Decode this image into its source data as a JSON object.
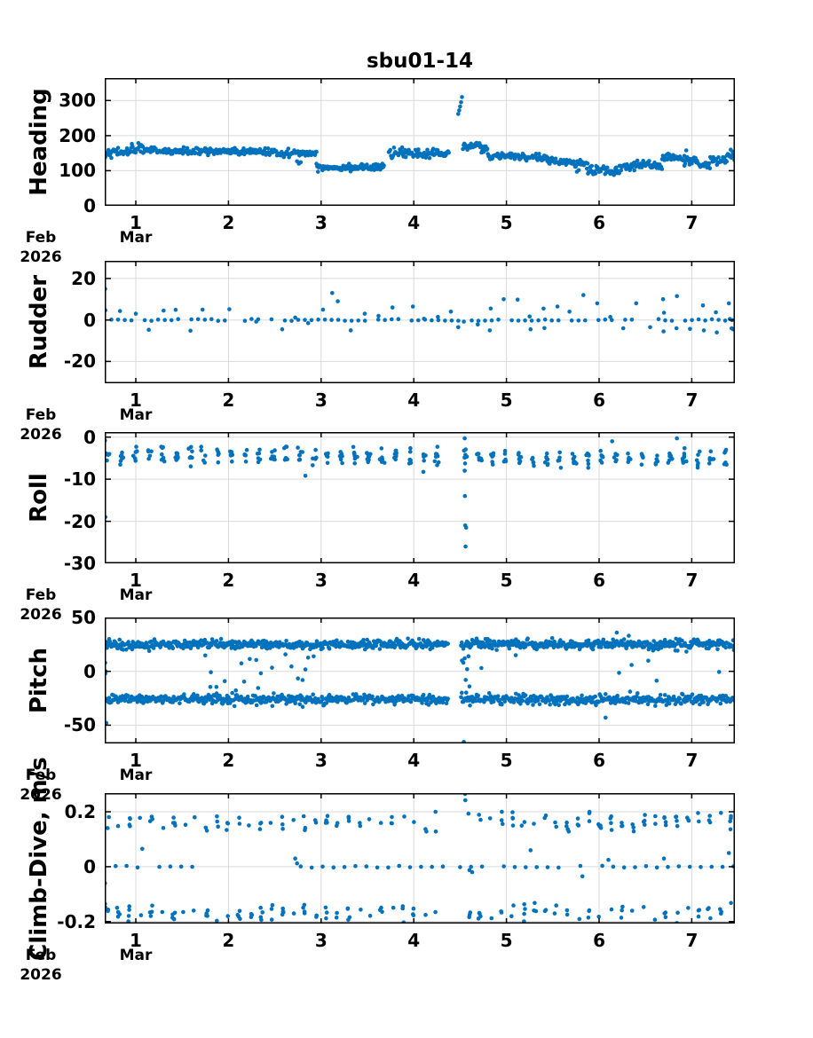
{
  "title": "sbu01-14",
  "chart_data": {
    "type": "scatter",
    "title": "sbu01-14",
    "marker_color": "#0072BD",
    "grid_color": "#dadada",
    "axis_color": "#000000",
    "seed": 42,
    "x_axis": {
      "xlim": [
        0.665,
        7.465
      ],
      "ticks": [
        1,
        2,
        3,
        4,
        5,
        6,
        7
      ],
      "tick_labels": [
        "1",
        "2",
        "3",
        "4",
        "5",
        "6",
        "7"
      ],
      "month_label": "Mar",
      "month_label_at_tick": 1,
      "edge_month": "Feb",
      "edge_year": "2026",
      "grid": true
    },
    "charts": [
      {
        "id": "heading",
        "ylabel": "Heading",
        "ylim": [
          0,
          364
        ],
        "yticks": [
          0,
          100,
          200,
          300
        ],
        "ytick_labels": [
          "0",
          "100",
          "200",
          "300"
        ],
        "spec": {
          "step": 0.008,
          "segments": [
            [
              0.665,
              0.95,
              153,
              5
            ],
            [
              0.95,
              1.02,
              162,
              7
            ],
            [
              1.02,
              1.08,
              170,
              7
            ],
            [
              1.08,
              1.3,
              158,
              5
            ],
            [
              1.3,
              1.9,
              155,
              5
            ],
            [
              1.9,
              2.55,
              154,
              5
            ],
            [
              2.55,
              2.95,
              150,
              5
            ],
            [
              2.95,
              3.68,
              110,
              5
            ],
            [
              3.73,
              4.38,
              149,
              6
            ],
            [
              4.53,
              4.63,
              168,
              6
            ],
            [
              4.63,
              4.73,
              173,
              5
            ],
            [
              4.73,
              4.8,
              160,
              6
            ],
            [
              4.8,
              5.2,
              141,
              5
            ],
            [
              5.2,
              5.45,
              137,
              5
            ],
            [
              5.45,
              5.7,
              127,
              5
            ],
            [
              5.7,
              5.88,
              119,
              6
            ],
            [
              5.88,
              6.22,
              98,
              7
            ],
            [
              6.22,
              6.38,
              110,
              7
            ],
            [
              6.38,
              6.55,
              118,
              6
            ],
            [
              6.55,
              6.68,
              112,
              6
            ],
            [
              6.68,
              6.92,
              135,
              5
            ],
            [
              6.92,
              7.06,
              127,
              6
            ],
            [
              7.06,
              7.2,
              116,
              6
            ],
            [
              7.2,
              7.38,
              130,
              6
            ],
            [
              7.38,
              7.465,
              144,
              6
            ]
          ],
          "points": [
            [
              0.67,
              138
            ],
            [
              2.74,
              127
            ],
            [
              2.76,
              120
            ],
            [
              2.78,
              124
            ],
            [
              4.48,
              262
            ],
            [
              4.49,
              272
            ],
            [
              4.5,
              283
            ],
            [
              4.51,
              295
            ],
            [
              4.52,
              310
            ],
            [
              5.76,
              97
            ],
            [
              6.94,
              158
            ],
            [
              7.42,
              160
            ],
            [
              7.44,
              154
            ]
          ]
        }
      },
      {
        "id": "rudder",
        "ylabel": "Rudder",
        "ylim": [
          -30.5,
          28.5
        ],
        "yticks": [
          -20,
          0,
          20
        ],
        "ytick_labels": [
          "-20",
          "0",
          "20"
        ],
        "spec": {
          "zero_lines": [
            [
              0.665,
              7.465,
              0.072,
              0,
              0.45,
              0.85
            ]
          ],
          "points": [
            [
              0.67,
              15
            ],
            [
              0.672,
              4.7
            ],
            [
              0.83,
              4.3
            ],
            [
              1.0,
              3
            ],
            [
              1.14,
              -4.7
            ],
            [
              1.3,
              4.5
            ],
            [
              1.43,
              4.9
            ],
            [
              1.59,
              -5.2
            ],
            [
              1.72,
              5
            ],
            [
              2.01,
              5.2
            ],
            [
              2.3,
              -0.8
            ],
            [
              2.58,
              -4.5
            ],
            [
              2.72,
              1.2
            ],
            [
              2.86,
              -1.5
            ],
            [
              3.02,
              5
            ],
            [
              3.12,
              13
            ],
            [
              3.18,
              9
            ],
            [
              3.32,
              -5
            ],
            [
              3.47,
              3
            ],
            [
              3.62,
              2
            ],
            [
              3.77,
              6
            ],
            [
              3.99,
              6.5
            ],
            [
              4.11,
              0.6
            ],
            [
              4.26,
              1.5
            ],
            [
              4.4,
              4
            ],
            [
              4.48,
              -3.5
            ],
            [
              4.54,
              -0.8
            ],
            [
              4.69,
              -2.2
            ],
            [
              4.82,
              -5
            ],
            [
              4.83,
              5.5
            ],
            [
              4.97,
              10
            ],
            [
              5.12,
              9.8
            ],
            [
              5.25,
              1.7
            ],
            [
              5.26,
              -4.5
            ],
            [
              5.4,
              5.5
            ],
            [
              5.41,
              -3.9
            ],
            [
              5.55,
              6.5
            ],
            [
              5.68,
              4
            ],
            [
              5.83,
              12
            ],
            [
              5.98,
              8
            ],
            [
              6.12,
              1.5
            ],
            [
              6.26,
              -4
            ],
            [
              6.4,
              8
            ],
            [
              6.55,
              -3.5
            ],
            [
              6.69,
              10
            ],
            [
              6.7,
              3.5
            ],
            [
              6.695,
              -5.5
            ],
            [
              6.84,
              11.5
            ],
            [
              6.835,
              -4
            ],
            [
              6.98,
              -4.3
            ],
            [
              7.12,
              7
            ],
            [
              7.13,
              -5
            ],
            [
              7.26,
              3.7
            ],
            [
              7.27,
              -6
            ],
            [
              7.4,
              8
            ],
            [
              7.41,
              0.5
            ],
            [
              7.43,
              -4
            ],
            [
              7.445,
              -4.5
            ]
          ]
        }
      },
      {
        "id": "roll",
        "ylabel": "Roll",
        "ylim": [
          -30,
          1.2
        ],
        "yticks": [
          0,
          -10,
          -20,
          -30
        ],
        "ytick_labels": [
          "0",
          "-10",
          "-20",
          "-30"
        ],
        "spec": {
          "clusters": [
            {
              "x0": 0.7,
              "x1": 7.44,
              "spacing": 0.148,
              "nmin": 5,
              "nmax": 8,
              "mean_start": -4.3,
              "mean_end": -5.3,
              "sd": 1.1,
              "clip": [
                -8.3,
                -2.3
              ],
              "xsd": 0.012,
              "skip": [
                4.38,
                4.5
              ]
            }
          ],
          "points": [
            [
              0.668,
              -0.8
            ],
            [
              0.668,
              -4.2
            ],
            [
              0.672,
              -19
            ],
            [
              2.83,
              -9.2
            ],
            [
              4.55,
              -0.3
            ],
            [
              4.552,
              -14
            ],
            [
              4.555,
              -21
            ],
            [
              4.565,
              -21.5
            ],
            [
              4.558,
              -26
            ],
            [
              4.55,
              -8.0
            ],
            [
              6.14,
              -1.0
            ],
            [
              6.84,
              -0.3
            ]
          ]
        }
      },
      {
        "id": "pitch",
        "ylabel": "Pitch",
        "ylim": [
          -67,
          50
        ],
        "yticks": [
          -50,
          0,
          50
        ],
        "ytick_labels": [
          "-50",
          "0",
          "50"
        ],
        "spec": {
          "step": 0.008,
          "segments": [
            [
              0.665,
              4.37,
              25,
              2.2,
              18,
              32
            ],
            [
              4.51,
              7.465,
              25,
              2.2,
              18,
              32
            ],
            [
              0.665,
              4.37,
              -26,
              2.2,
              -33,
              -18
            ],
            [
              4.51,
              7.465,
              -26,
              2.2,
              -33,
              -18
            ]
          ],
          "uniform_scatter": [
            [
              0.68,
              7.4,
              0.045,
              0.1,
              -19,
              16
            ],
            [
              1.75,
              3.05,
              0.03,
              0.2,
              -18,
              15
            ]
          ],
          "points": [
            [
              0.67,
              8
            ],
            [
              0.672,
              -2
            ],
            [
              0.675,
              0
            ],
            [
              0.682,
              -48
            ],
            [
              4.54,
              -65.5
            ],
            [
              6.07,
              -43
            ],
            [
              6.19,
              36
            ],
            [
              6.32,
              33
            ],
            [
              4.52,
              10
            ],
            [
              4.535,
              8
            ],
            [
              4.55,
              12
            ],
            [
              4.56,
              -8
            ],
            [
              4.575,
              2
            ],
            [
              4.59,
              14
            ],
            [
              4.6,
              -14
            ],
            [
              5.1,
              15
            ]
          ]
        }
      },
      {
        "id": "climb-dive",
        "ylabel": "Climb-Dive, m/s",
        "ylim": [
          -0.207,
          0.268
        ],
        "yticks": [
          -0.2,
          0,
          0.2
        ],
        "ytick_labels": [
          "-0.2",
          "0",
          "0.2"
        ],
        "spec": {
          "clusters": [
            {
              "x0": 0.7,
              "x1": 7.45,
              "spacing": 0.118,
              "nmin": 1,
              "nmax": 4,
              "mean_start": 0.162,
              "mean_end": 0.165,
              "sd": 0.016,
              "clip": [
                0.128,
                0.2
              ],
              "xsd": 0.008,
              "skip": [
                4.3,
                4.55
              ]
            },
            {
              "x0": 0.7,
              "x1": 7.45,
              "spacing": 0.118,
              "nmin": 1,
              "nmax": 4,
              "mean_start": -0.168,
              "mean_end": -0.168,
              "sd": 0.016,
              "clip": [
                -0.205,
                -0.132
              ],
              "xsd": 0.008,
              "skip": [
                4.33,
                4.5
              ]
            }
          ],
          "zero_lines": [
            [
              0.665,
              1.68,
              0.118,
              0,
              0.0035,
              0.9
            ],
            [
              2.78,
              4.38,
              0.118,
              0,
              0.0035,
              0.9
            ],
            [
              4.5,
              7.46,
              0.118,
              0,
              0.0035,
              0.9
            ]
          ],
          "points": [
            [
              0.668,
              -0.06
            ],
            [
              0.668,
              -0.135
            ],
            [
              0.671,
              -0.148
            ],
            [
              1.07,
              0.065
            ],
            [
              2.72,
              0.03
            ],
            [
              2.74,
              0.012
            ],
            [
              4.553,
              0.265
            ],
            [
              4.556,
              0.242
            ],
            [
              4.6,
              -0.012
            ],
            [
              4.63,
              -0.02
            ],
            [
              5.26,
              0.06
            ],
            [
              5.82,
              -0.035
            ],
            [
              6.1,
              0.025
            ],
            [
              6.7,
              0.03
            ],
            [
              7.4,
              0.05
            ]
          ]
        }
      }
    ]
  }
}
